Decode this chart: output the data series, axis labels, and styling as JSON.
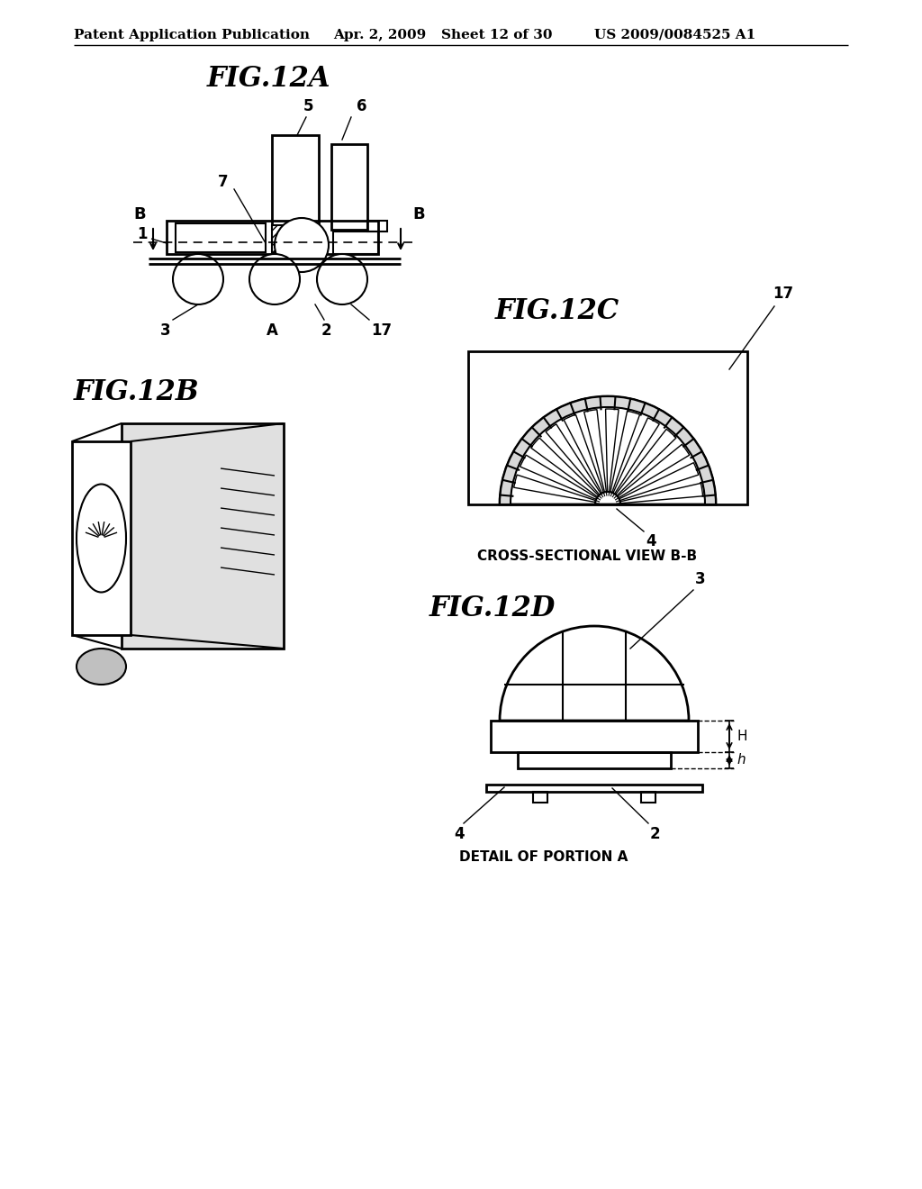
{
  "background_color": "#ffffff",
  "header_text": "Patent Application Publication",
  "header_date": "Apr. 2, 2009",
  "header_sheet": "Sheet 12 of 30",
  "header_patent": "US 2009/0084525 A1",
  "fig12a_title": "FIG.12A",
  "fig12b_title": "FIG.12B",
  "fig12c_title": "FIG.12C",
  "fig12d_title": "FIG.12D",
  "cross_section_label": "CROSS-SECTIONAL VIEW B-B",
  "detail_label": "DETAIL OF PORTION A",
  "line_color": "#000000",
  "font_size_header": 11,
  "font_size_fig": 18,
  "font_size_label": 10,
  "font_size_ref": 12
}
